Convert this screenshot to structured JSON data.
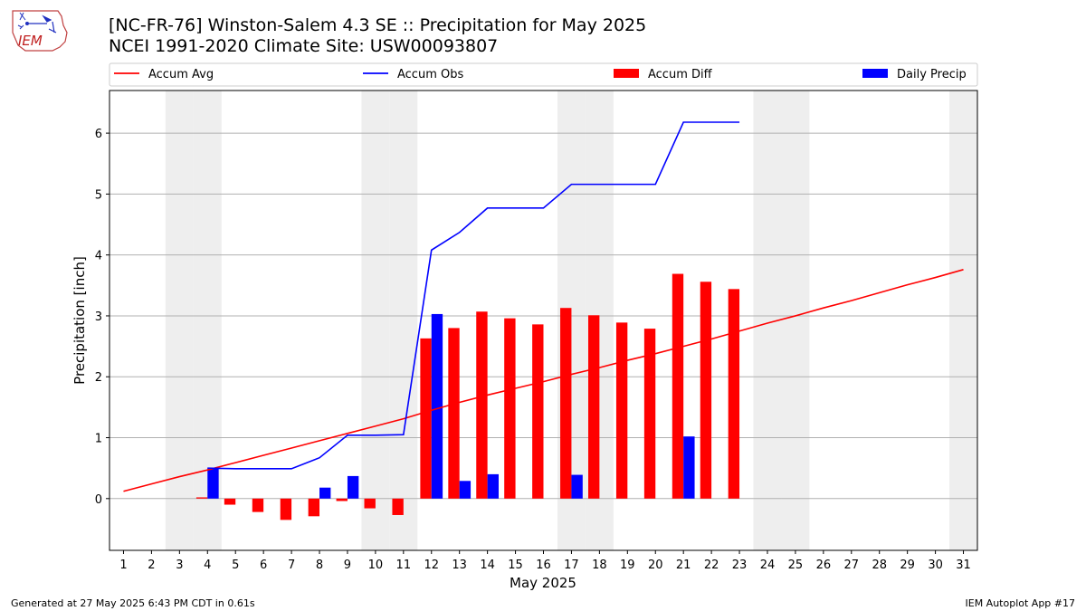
{
  "header": {
    "title": "[NC-FR-76] Winston-Salem 4.3 SE :: Precipitation for May 2025",
    "subtitle": "NCEI 1991-2020 Climate Site: USW00093807",
    "logo_text": "IEM"
  },
  "footer": {
    "generated": "Generated at 27 May 2025 6:43 PM CDT in 0.61s",
    "app": "IEM Autoplot App #17"
  },
  "colors": {
    "avg": "#ff0000",
    "obs": "#0000ff",
    "diff": "#ff0000",
    "daily": "#0000ff",
    "weekend": "#eeeeee",
    "grid": "#b0b0b0"
  },
  "chart_data": {
    "type": "bar",
    "xlabel": "May 2025",
    "ylabel": "Precipitation [inch]",
    "xlim": [
      0.5,
      31.5
    ],
    "ylim": [
      -0.85,
      6.7
    ],
    "yticks": [
      0,
      1,
      2,
      3,
      4,
      5,
      6
    ],
    "grid": true,
    "legend_position": "top",
    "legend": [
      "Accum Avg",
      "Accum Obs",
      "Accum Diff",
      "Daily Precip"
    ],
    "weekend_days": [
      3,
      4,
      10,
      11,
      17,
      18,
      24,
      25,
      31
    ],
    "days": [
      1,
      2,
      3,
      4,
      5,
      6,
      7,
      8,
      9,
      10,
      11,
      12,
      13,
      14,
      15,
      16,
      17,
      18,
      19,
      20,
      21,
      22,
      23,
      24,
      25,
      26,
      27,
      28,
      29,
      30,
      31
    ],
    "series": [
      {
        "name": "Accum Avg",
        "type": "line",
        "x": [
          1,
          2,
          3,
          4,
          5,
          6,
          7,
          8,
          9,
          10,
          11,
          12,
          13,
          14,
          15,
          16,
          17,
          18,
          19,
          20,
          21,
          22,
          23,
          24,
          25,
          26,
          27,
          28,
          29,
          30,
          31
        ],
        "values": [
          0.12,
          0.24,
          0.36,
          0.47,
          0.59,
          0.71,
          0.83,
          0.95,
          1.07,
          1.19,
          1.31,
          1.45,
          1.58,
          1.7,
          1.81,
          1.92,
          2.04,
          2.15,
          2.27,
          2.38,
          2.5,
          2.62,
          2.75,
          2.88,
          3.0,
          3.13,
          3.25,
          3.38,
          3.51,
          3.63,
          3.76
        ]
      },
      {
        "name": "Accum Obs",
        "type": "line",
        "x": [
          4,
          5,
          6,
          7,
          8,
          9,
          10,
          11,
          12,
          13,
          14,
          15,
          16,
          17,
          18,
          19,
          20,
          21,
          22,
          23
        ],
        "values": [
          0.5,
          0.49,
          0.49,
          0.49,
          0.67,
          1.04,
          1.04,
          1.05,
          4.08,
          4.37,
          4.77,
          4.77,
          4.77,
          5.16,
          5.16,
          5.16,
          5.16,
          6.18,
          6.18,
          6.18
        ]
      },
      {
        "name": "Accum Diff",
        "type": "bar",
        "x": [
          4,
          5,
          6,
          7,
          8,
          9,
          10,
          11,
          12,
          13,
          14,
          15,
          16,
          17,
          18,
          19,
          20,
          21,
          22,
          23
        ],
        "values": [
          0.02,
          -0.1,
          -0.22,
          -0.35,
          -0.29,
          -0.04,
          -0.16,
          -0.27,
          2.63,
          2.8,
          3.07,
          2.96,
          2.86,
          3.13,
          3.01,
          2.89,
          2.79,
          3.69,
          3.56,
          3.44
        ]
      },
      {
        "name": "Daily Precip",
        "type": "bar",
        "x": [
          4,
          8,
          9,
          12,
          13,
          14,
          17,
          21
        ],
        "values": [
          0.5,
          0.18,
          0.37,
          3.03,
          0.29,
          0.4,
          0.39,
          1.02
        ]
      }
    ]
  }
}
